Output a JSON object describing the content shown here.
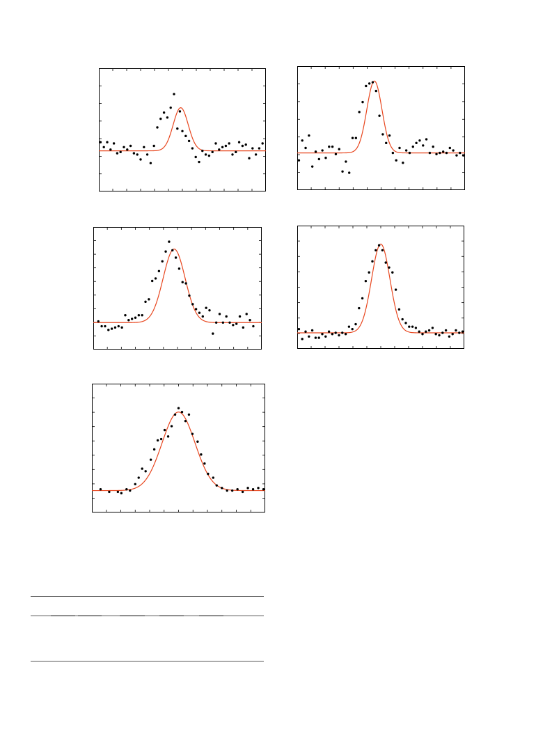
{
  "chart_data": [
    {
      "type": "scatter",
      "xlim": [
        0,
        1
      ],
      "ylim": [
        0,
        1
      ],
      "x_ticks": 12,
      "y_ticks": 7,
      "fit": {
        "type": "gaussian",
        "baseline": 0.33,
        "amplitude": 0.35,
        "center": 0.49,
        "sigma": 0.045,
        "color": "#e8461e"
      },
      "points": {
        "x": [
          0.01,
          0.03,
          0.05,
          0.07,
          0.09,
          0.11,
          0.13,
          0.15,
          0.17,
          0.19,
          0.21,
          0.23,
          0.25,
          0.27,
          0.29,
          0.31,
          0.33,
          0.35,
          0.37,
          0.39,
          0.41,
          0.43,
          0.45,
          0.47,
          0.485,
          0.5,
          0.52,
          0.54,
          0.56,
          0.58,
          0.6,
          0.62,
          0.64,
          0.66,
          0.68,
          0.7,
          0.72,
          0.74,
          0.76,
          0.78,
          0.8,
          0.82,
          0.84,
          0.86,
          0.88,
          0.9,
          0.92,
          0.94,
          0.96,
          0.98
        ],
        "y": [
          0.4,
          0.36,
          0.4,
          0.34,
          0.39,
          0.31,
          0.32,
          0.36,
          0.34,
          0.37,
          0.31,
          0.3,
          0.26,
          0.36,
          0.3,
          0.23,
          0.37,
          0.52,
          0.59,
          0.64,
          0.6,
          0.68,
          0.79,
          0.51,
          0.65,
          0.49,
          0.45,
          0.41,
          0.35,
          0.28,
          0.24,
          0.33,
          0.3,
          0.29,
          0.32,
          0.39,
          0.34,
          0.36,
          0.37,
          0.39,
          0.3,
          0.32,
          0.4,
          0.37,
          0.38,
          0.27,
          0.35,
          0.3,
          0.35,
          0.39
        ]
      }
    },
    {
      "type": "scatter",
      "xlim": [
        0,
        1
      ],
      "ylim": [
        0,
        1
      ],
      "x_ticks": 12,
      "y_ticks": 7,
      "fit": {
        "type": "gaussian",
        "baseline": 0.3,
        "amplitude": 0.58,
        "center": 0.46,
        "sigma": 0.045,
        "color": "#e8461e"
      },
      "points": {
        "x": [
          0.01,
          0.03,
          0.05,
          0.07,
          0.09,
          0.11,
          0.13,
          0.15,
          0.17,
          0.19,
          0.21,
          0.23,
          0.25,
          0.27,
          0.29,
          0.31,
          0.33,
          0.35,
          0.37,
          0.39,
          0.41,
          0.43,
          0.45,
          0.47,
          0.49,
          0.51,
          0.53,
          0.55,
          0.57,
          0.59,
          0.61,
          0.63,
          0.65,
          0.67,
          0.69,
          0.71,
          0.73,
          0.75,
          0.77,
          0.79,
          0.81,
          0.83,
          0.85,
          0.87,
          0.89,
          0.91,
          0.93,
          0.95,
          0.97,
          0.99
        ],
        "y": [
          0.24,
          0.4,
          0.34,
          0.44,
          0.19,
          0.31,
          0.25,
          0.32,
          0.26,
          0.35,
          0.35,
          0.29,
          0.33,
          0.15,
          0.23,
          0.14,
          0.42,
          0.42,
          0.63,
          0.71,
          0.84,
          0.86,
          0.87,
          0.8,
          0.6,
          0.45,
          0.38,
          0.44,
          0.3,
          0.24,
          0.34,
          0.22,
          0.32,
          0.3,
          0.35,
          0.38,
          0.4,
          0.36,
          0.41,
          0.3,
          0.35,
          0.29,
          0.3,
          0.31,
          0.3,
          0.34,
          0.32,
          0.28,
          0.3,
          0.28
        ]
      }
    },
    {
      "type": "scatter",
      "xlim": [
        0,
        1
      ],
      "ylim": [
        0,
        1
      ],
      "x_ticks": 12,
      "y_ticks": 9,
      "fit": {
        "type": "gaussian",
        "baseline": 0.22,
        "amplitude": 0.6,
        "center": 0.48,
        "sigma": 0.065,
        "color": "#e8461e"
      },
      "points": {
        "x": [
          0.03,
          0.05,
          0.07,
          0.09,
          0.11,
          0.13,
          0.15,
          0.17,
          0.19,
          0.21,
          0.23,
          0.25,
          0.27,
          0.29,
          0.31,
          0.33,
          0.35,
          0.37,
          0.39,
          0.41,
          0.43,
          0.45,
          0.47,
          0.49,
          0.51,
          0.53,
          0.55,
          0.57,
          0.59,
          0.61,
          0.63,
          0.65,
          0.67,
          0.69,
          0.71,
          0.73,
          0.75,
          0.77,
          0.79,
          0.81,
          0.83,
          0.85,
          0.87,
          0.89,
          0.91,
          0.93,
          0.95
        ],
        "y": [
          0.23,
          0.19,
          0.19,
          0.16,
          0.17,
          0.18,
          0.19,
          0.18,
          0.28,
          0.24,
          0.25,
          0.26,
          0.28,
          0.28,
          0.39,
          0.41,
          0.56,
          0.58,
          0.64,
          0.72,
          0.8,
          0.88,
          0.81,
          0.75,
          0.66,
          0.55,
          0.54,
          0.44,
          0.37,
          0.33,
          0.3,
          0.27,
          0.34,
          0.32,
          0.13,
          0.22,
          0.29,
          0.22,
          0.27,
          0.22,
          0.2,
          0.21,
          0.27,
          0.18,
          0.29,
          0.24,
          0.19
        ]
      }
    },
    {
      "type": "scatter",
      "xlim": [
        0,
        1
      ],
      "ylim": [
        0,
        1
      ],
      "x_ticks": 12,
      "y_ticks": 8,
      "fit": {
        "type": "gaussian",
        "baseline": 0.13,
        "amplitude": 0.72,
        "center": 0.5,
        "sigma": 0.055,
        "color": "#e8461e"
      },
      "points": {
        "x": [
          0.01,
          0.03,
          0.05,
          0.07,
          0.09,
          0.11,
          0.13,
          0.15,
          0.17,
          0.19,
          0.21,
          0.23,
          0.25,
          0.27,
          0.29,
          0.31,
          0.33,
          0.35,
          0.37,
          0.39,
          0.41,
          0.43,
          0.45,
          0.47,
          0.49,
          0.51,
          0.53,
          0.55,
          0.57,
          0.59,
          0.61,
          0.63,
          0.65,
          0.67,
          0.69,
          0.71,
          0.73,
          0.75,
          0.77,
          0.79,
          0.81,
          0.83,
          0.85,
          0.87,
          0.89,
          0.91,
          0.93,
          0.95,
          0.97,
          0.99
        ],
        "y": [
          0.16,
          0.08,
          0.14,
          0.1,
          0.15,
          0.09,
          0.09,
          0.12,
          0.1,
          0.14,
          0.12,
          0.13,
          0.11,
          0.13,
          0.12,
          0.18,
          0.16,
          0.2,
          0.33,
          0.41,
          0.55,
          0.62,
          0.71,
          0.8,
          0.84,
          0.8,
          0.7,
          0.66,
          0.62,
          0.48,
          0.32,
          0.24,
          0.21,
          0.18,
          0.18,
          0.17,
          0.14,
          0.12,
          0.14,
          0.15,
          0.17,
          0.12,
          0.11,
          0.13,
          0.15,
          0.1,
          0.12,
          0.15,
          0.13,
          0.14
        ]
      }
    },
    {
      "type": "scatter",
      "xlim": [
        0,
        1
      ],
      "ylim": [
        0,
        1
      ],
      "x_ticks": 12,
      "y_ticks": 9,
      "fit": {
        "type": "gaussian",
        "baseline": 0.17,
        "amplitude": 0.61,
        "center": 0.5,
        "sigma": 0.095,
        "color": "#e8461e"
      },
      "points": {
        "x": [
          0.05,
          0.1,
          0.15,
          0.17,
          0.2,
          0.22,
          0.25,
          0.27,
          0.29,
          0.31,
          0.34,
          0.36,
          0.38,
          0.4,
          0.42,
          0.44,
          0.46,
          0.48,
          0.5,
          0.52,
          0.54,
          0.56,
          0.58,
          0.61,
          0.63,
          0.65,
          0.67,
          0.7,
          0.72,
          0.75,
          0.78,
          0.81,
          0.84,
          0.87,
          0.9,
          0.93,
          0.96,
          0.99
        ],
        "y": [
          0.18,
          0.16,
          0.16,
          0.15,
          0.18,
          0.17,
          0.22,
          0.27,
          0.34,
          0.32,
          0.41,
          0.49,
          0.56,
          0.57,
          0.64,
          0.59,
          0.67,
          0.76,
          0.81,
          0.78,
          0.71,
          0.76,
          0.61,
          0.55,
          0.45,
          0.38,
          0.3,
          0.27,
          0.21,
          0.19,
          0.17,
          0.17,
          0.18,
          0.16,
          0.19,
          0.18,
          0.19,
          0.18
        ]
      }
    }
  ]
}
